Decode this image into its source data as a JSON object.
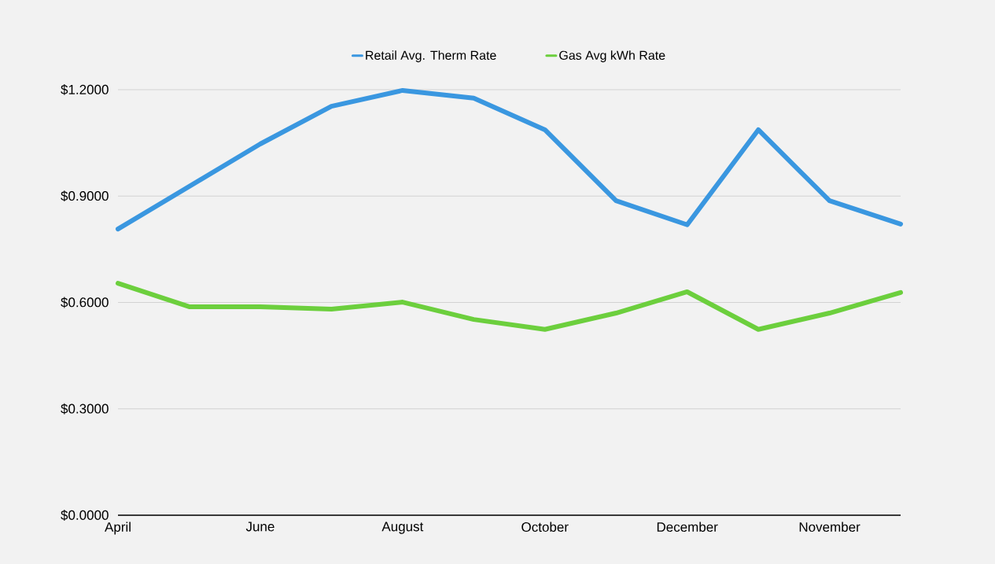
{
  "chart_data": {
    "type": "line",
    "categories": [
      "April",
      null,
      "June",
      null,
      "August",
      null,
      "October",
      null,
      "December",
      null,
      "November",
      null
    ],
    "series": [
      {
        "name": "Retail Avg. Therm Rate",
        "color": "#3a97e0",
        "values": [
          0.807,
          0.927,
          1.047,
          1.153,
          1.198,
          1.176,
          1.087,
          0.887,
          0.819,
          1.087,
          0.887,
          0.821
        ]
      },
      {
        "name": "Gas Avg kWh Rate",
        "color": "#6ccf3d",
        "values": [
          0.654,
          0.588,
          0.588,
          0.581,
          0.601,
          0.552,
          0.524,
          0.57,
          0.63,
          0.524,
          0.57,
          0.628
        ]
      }
    ],
    "ylim": [
      0,
      1.2
    ],
    "yticks": [
      {
        "value": 0,
        "label": "$0.0000"
      },
      {
        "value": 0.3,
        "label": "$0.3000"
      },
      {
        "value": 0.6,
        "label": "$0.6000"
      },
      {
        "value": 0.9,
        "label": "$0.9000"
      },
      {
        "value": 1.2,
        "label": "$1.2000"
      }
    ],
    "grid": "y",
    "legend": "top",
    "marker": "none",
    "line_style": "solid"
  }
}
